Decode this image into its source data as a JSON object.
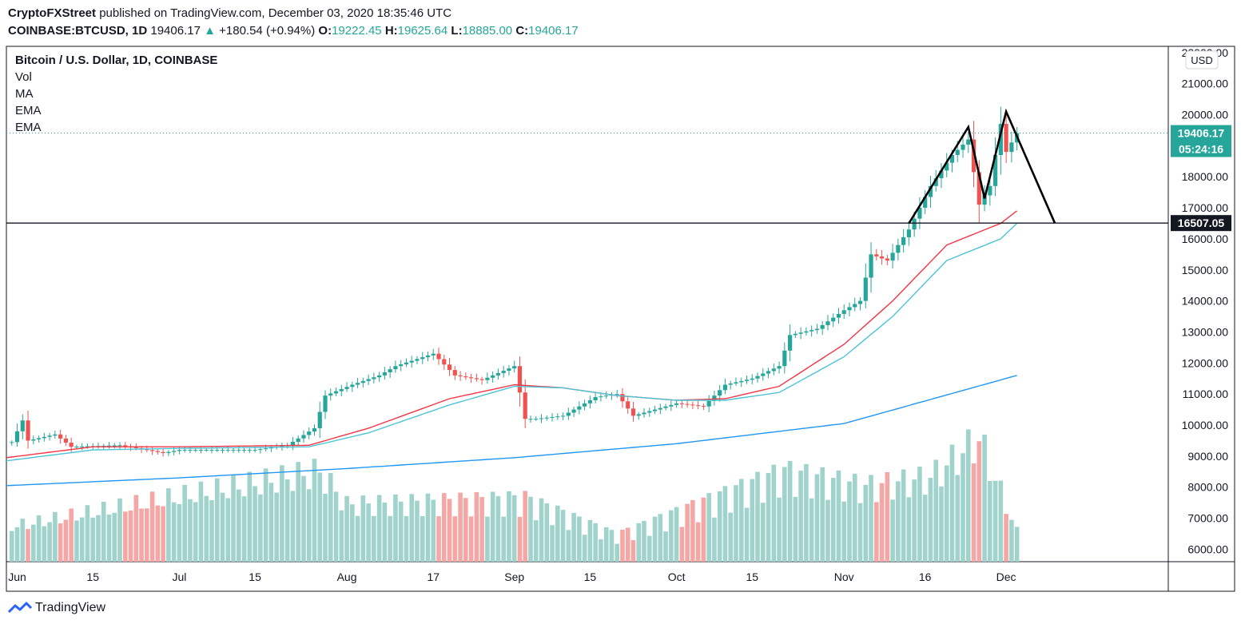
{
  "header": {
    "publisher": "CryptoFXStreet",
    "published_text": "published on TradingView.com, December 03, 2020 18:35:46 UTC",
    "symbol": "COINBASE:BTCUSD, 1D",
    "last": "19406.17",
    "change": "+180.54 (+0.94%)",
    "o_label": "O:",
    "o": "19222.45",
    "h_label": "H:",
    "h": "19625.64",
    "l_label": "L:",
    "l": "18885.00",
    "c_label": "C:",
    "c": "19406.17"
  },
  "legend": {
    "title": "Bitcoin / U.S. Dollar, 1D, COINBASE",
    "items": [
      "Vol",
      "MA",
      "EMA",
      "EMA"
    ]
  },
  "currency": "USD",
  "badges": {
    "last_price": "19406.17",
    "countdown": "05:24:16",
    "level": "16507.05"
  },
  "footer": {
    "brand": "TradingView"
  },
  "colors": {
    "up": "#26a69a",
    "down": "#ef5350",
    "vol_up": "#9fd3cc",
    "vol_down": "#f5a7a5",
    "ema_fast": "#f23645",
    "ema_slow": "#4dc3d6",
    "ma": "#2196f3",
    "pattern": "#000000",
    "level": "#131722"
  },
  "chart_data": {
    "type": "line",
    "title": "Bitcoin / U.S. Dollar, 1D, COINBASE",
    "ylim": [
      5600,
      22200
    ],
    "y_ticks": [
      6000,
      7000,
      8000,
      9000,
      10000,
      11000,
      12000,
      13000,
      14000,
      15000,
      16000,
      17000,
      18000,
      19000,
      20000,
      21000,
      22000
    ],
    "x_ticks": [
      {
        "label": "Jun",
        "date": "2020-06-01"
      },
      {
        "label": "15",
        "date": "2020-06-15"
      },
      {
        "label": "Jul",
        "date": "2020-07-01"
      },
      {
        "label": "15",
        "date": "2020-07-15"
      },
      {
        "label": "Aug",
        "date": "2020-08-01"
      },
      {
        "label": "17",
        "date": "2020-08-17"
      },
      {
        "label": "Sep",
        "date": "2020-09-01"
      },
      {
        "label": "15",
        "date": "2020-09-15"
      },
      {
        "label": "Oct",
        "date": "2020-10-01"
      },
      {
        "label": "15",
        "date": "2020-10-15"
      },
      {
        "label": "Nov",
        "date": "2020-11-01"
      },
      {
        "label": "16",
        "date": "2020-11-16"
      },
      {
        "label": "Dec",
        "date": "2020-12-01"
      }
    ],
    "date_range": [
      "2020-05-30",
      "2020-12-31"
    ],
    "price_anchors": [
      [
        "2020-05-31",
        9450
      ],
      [
        "2020-06-02",
        10150
      ],
      [
        "2020-06-03",
        9500
      ],
      [
        "2020-06-08",
        9700
      ],
      [
        "2020-06-11",
        9300
      ],
      [
        "2020-06-20",
        9350
      ],
      [
        "2020-06-28",
        9100
      ],
      [
        "2020-07-01",
        9200
      ],
      [
        "2020-07-15",
        9200
      ],
      [
        "2020-07-21",
        9350
      ],
      [
        "2020-07-26",
        9900
      ],
      [
        "2020-07-28",
        10950
      ],
      [
        "2020-08-02",
        11300
      ],
      [
        "2020-08-07",
        11600
      ],
      [
        "2020-08-10",
        11900
      ],
      [
        "2020-08-17",
        12300
      ],
      [
        "2020-08-21",
        11600
      ],
      [
        "2020-08-26",
        11450
      ],
      [
        "2020-09-01",
        11900
      ],
      [
        "2020-09-03",
        10200
      ],
      [
        "2020-09-05",
        10200
      ],
      [
        "2020-09-10",
        10300
      ],
      [
        "2020-09-16",
        10900
      ],
      [
        "2020-09-20",
        11000
      ],
      [
        "2020-09-23",
        10300
      ],
      [
        "2020-10-01",
        10700
      ],
      [
        "2020-10-06",
        10600
      ],
      [
        "2020-10-10",
        11300
      ],
      [
        "2020-10-15",
        11500
      ],
      [
        "2020-10-20",
        11900
      ],
      [
        "2020-10-22",
        12900
      ],
      [
        "2020-10-27",
        13100
      ],
      [
        "2020-11-01",
        13700
      ],
      [
        "2020-11-04",
        14000
      ],
      [
        "2020-11-06",
        15500
      ],
      [
        "2020-11-09",
        15300
      ],
      [
        "2020-11-13",
        16300
      ],
      [
        "2020-11-17",
        17700
      ],
      [
        "2020-11-21",
        18700
      ],
      [
        "2020-11-24",
        19200
      ],
      [
        "2020-11-26",
        17100
      ],
      [
        "2020-11-28",
        17700
      ],
      [
        "2020-11-30",
        19700
      ],
      [
        "2020-12-01",
        18800
      ],
      [
        "2020-12-03",
        19406
      ]
    ],
    "series": [
      {
        "name": "Vol",
        "volume_range": [
          0,
          500000
        ],
        "anchors": [
          [
            "2020-06-01",
            120000
          ],
          [
            "2020-07-27",
            300000
          ],
          [
            "2020-08-01",
            190000
          ],
          [
            "2020-09-03",
            210000
          ],
          [
            "2020-09-20",
            90000
          ],
          [
            "2020-10-21",
            300000
          ],
          [
            "2020-11-05",
            250000
          ],
          [
            "2020-11-17",
            280000
          ],
          [
            "2020-11-26",
            410000
          ],
          [
            "2020-12-03",
            100000
          ]
        ]
      },
      {
        "name": "MA",
        "anchors": [
          [
            "2020-05-30",
            8050
          ],
          [
            "2020-07-01",
            8300
          ],
          [
            "2020-08-01",
            8600
          ],
          [
            "2020-09-01",
            8950
          ],
          [
            "2020-10-01",
            9400
          ],
          [
            "2020-11-01",
            10050
          ],
          [
            "2020-12-03",
            11600
          ]
        ]
      },
      {
        "name": "EMA",
        "anchors": [
          [
            "2020-05-30",
            8950
          ],
          [
            "2020-06-15",
            9300
          ],
          [
            "2020-07-01",
            9300
          ],
          [
            "2020-07-25",
            9350
          ],
          [
            "2020-08-05",
            9900
          ],
          [
            "2020-08-20",
            10850
          ],
          [
            "2020-09-01",
            11300
          ],
          [
            "2020-09-10",
            11200
          ],
          [
            "2020-09-20",
            10950
          ],
          [
            "2020-10-01",
            10800
          ],
          [
            "2020-10-10",
            10850
          ],
          [
            "2020-10-20",
            11250
          ],
          [
            "2020-11-01",
            12600
          ],
          [
            "2020-11-10",
            14000
          ],
          [
            "2020-11-20",
            15800
          ],
          [
            "2020-11-30",
            16500
          ],
          [
            "2020-12-03",
            16900
          ]
        ]
      },
      {
        "name": "EMA",
        "anchors": [
          [
            "2020-05-30",
            8850
          ],
          [
            "2020-06-15",
            9200
          ],
          [
            "2020-07-01",
            9250
          ],
          [
            "2020-07-25",
            9300
          ],
          [
            "2020-08-05",
            9750
          ],
          [
            "2020-08-20",
            10650
          ],
          [
            "2020-09-01",
            11250
          ],
          [
            "2020-09-10",
            11200
          ],
          [
            "2020-09-20",
            10950
          ],
          [
            "2020-10-01",
            10800
          ],
          [
            "2020-10-10",
            10800
          ],
          [
            "2020-10-20",
            11050
          ],
          [
            "2020-11-01",
            12200
          ],
          [
            "2020-11-10",
            13500
          ],
          [
            "2020-11-20",
            15300
          ],
          [
            "2020-11-30",
            16000
          ],
          [
            "2020-12-03",
            16500
          ]
        ]
      }
    ],
    "horizontal_levels": [
      16507.05
    ],
    "pattern_line": [
      [
        "2020-11-13",
        16500
      ],
      [
        "2020-11-24",
        19600
      ],
      [
        "2020-11-27",
        17300
      ],
      [
        "2020-12-01",
        20100
      ],
      [
        "2020-12-10",
        16507
      ]
    ],
    "grid": false,
    "legend_position": "top-left"
  }
}
